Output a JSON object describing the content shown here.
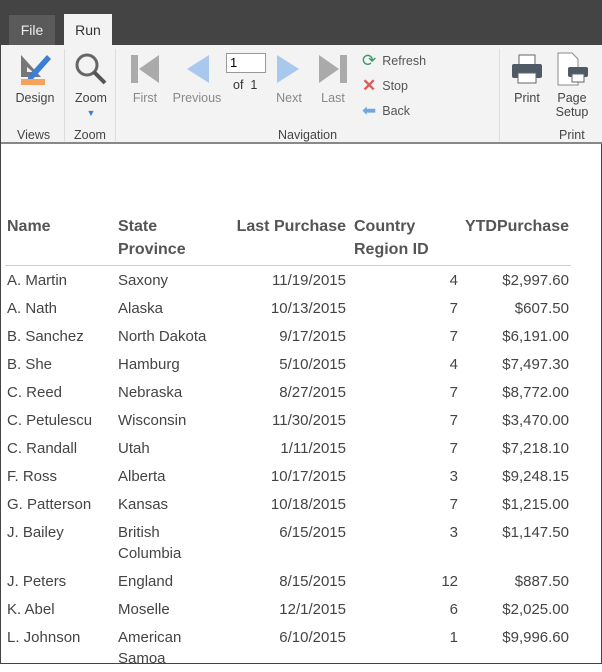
{
  "tabs": {
    "file": "File",
    "run": "Run"
  },
  "ribbon": {
    "design": "Design",
    "zoom": "Zoom",
    "first": "First",
    "previous": "Previous",
    "next": "Next",
    "last": "Last",
    "page_value": "1",
    "of_label": "of",
    "page_total": "1",
    "refresh": "Refresh",
    "stop": "Stop",
    "back": "Back",
    "print": "Print",
    "page_setup_1": "Page",
    "page_setup_2": "Setup",
    "groups": {
      "views": "Views",
      "zoom": "Zoom",
      "navigation": "Navigation",
      "print": "Print"
    }
  },
  "table": {
    "headers": [
      "Name",
      "State Province",
      "Last Purchase",
      "Country Region ID",
      "YTDPurchase"
    ],
    "rows": [
      [
        "A. Martin",
        "Saxony",
        "11/19/2015",
        "4",
        "$2,997.60"
      ],
      [
        "A. Nath",
        "Alaska",
        "10/13/2015",
        "7",
        "$607.50"
      ],
      [
        "B. Sanchez",
        "North Dakota",
        "9/17/2015",
        "7",
        "$6,191.00"
      ],
      [
        "B. She",
        "Hamburg",
        "5/10/2015",
        "4",
        "$7,497.30"
      ],
      [
        "C. Reed",
        "Nebraska",
        "8/27/2015",
        "7",
        "$8,772.00"
      ],
      [
        "C. Petulescu",
        "Wisconsin",
        "11/30/2015",
        "7",
        "$3,470.00"
      ],
      [
        "C. Randall",
        "Utah",
        "1/11/2015",
        "7",
        "$7,218.10"
      ],
      [
        "F. Ross",
        "Alberta",
        "10/17/2015",
        "3",
        "$9,248.15"
      ],
      [
        "G. Patterson",
        "Kansas",
        "10/18/2015",
        "7",
        "$1,215.00"
      ],
      [
        "J. Bailey",
        "British Columbia",
        "6/15/2015",
        "3",
        "$1,147.50"
      ],
      [
        "J. Peters",
        "England",
        "8/15/2015",
        "12",
        "$887.50"
      ],
      [
        "K. Abel",
        "Moselle",
        "12/1/2015",
        "6",
        "$2,025.00"
      ],
      [
        "L. Johnson",
        "American Samoa",
        "6/10/2015",
        "1",
        "$9,996.60"
      ]
    ]
  }
}
